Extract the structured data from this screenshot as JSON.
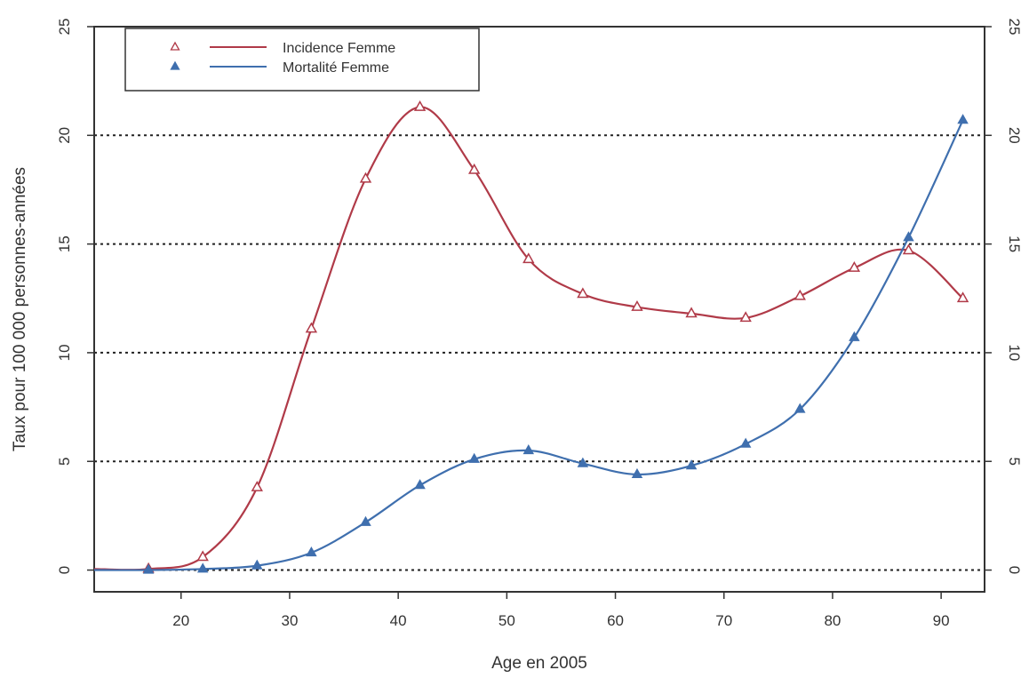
{
  "chart_data": {
    "type": "line",
    "xlabel": "Age en 2005",
    "ylabel": "Taux pour 100 000 personnes-années",
    "xlim": [
      12,
      94
    ],
    "ylim": [
      -1,
      25
    ],
    "x_ticks": [
      20,
      30,
      40,
      50,
      60,
      70,
      80,
      90
    ],
    "x_tick_labels": [
      "20",
      "30",
      "40",
      "50",
      "60",
      "70",
      "80",
      "90"
    ],
    "y_ticks": [
      0,
      5,
      10,
      15,
      20,
      25
    ],
    "y_tick_labels": [
      "0",
      "5",
      "10",
      "15",
      "20",
      "25"
    ],
    "right_axis": true,
    "grid": "horizontal dotted",
    "legend_position": "top-left",
    "series": [
      {
        "name": "Incidence Femme",
        "color": "#b03a48",
        "marker": "open-triangle",
        "x": [
          17,
          22,
          27,
          32,
          37,
          42,
          47,
          52,
          57,
          62,
          67,
          72,
          77,
          82,
          87,
          92
        ],
        "values": [
          0.05,
          0.6,
          3.8,
          11.1,
          18.0,
          21.3,
          18.4,
          14.3,
          12.7,
          12.1,
          11.8,
          11.6,
          12.6,
          13.9,
          14.7,
          12.5
        ]
      },
      {
        "name": "Mortalité Femme",
        "color": "#3f6fae",
        "marker": "filled-triangle",
        "x": [
          17,
          22,
          27,
          32,
          37,
          42,
          47,
          52,
          57,
          62,
          67,
          72,
          77,
          82,
          87,
          92
        ],
        "values": [
          0.0,
          0.05,
          0.2,
          0.8,
          2.2,
          3.9,
          5.1,
          5.5,
          4.9,
          4.4,
          4.8,
          5.8,
          7.4,
          10.7,
          15.3,
          20.7
        ]
      }
    ]
  }
}
